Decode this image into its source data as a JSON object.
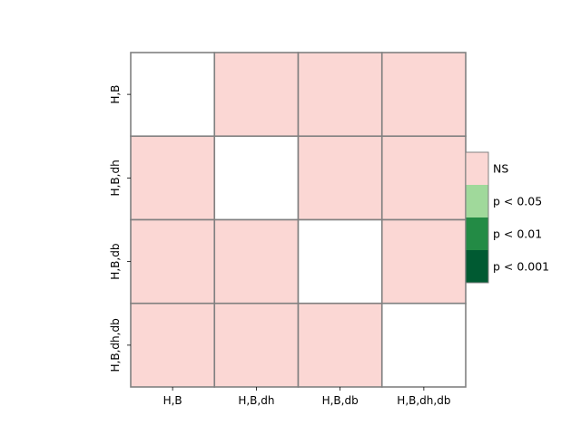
{
  "chart_data": {
    "type": "heatmap",
    "rows": [
      "H,B",
      "H,B,dh",
      "H,B,db",
      "H,B,dh,db"
    ],
    "cols": [
      "H,B",
      "H,B,dh",
      "H,B,db",
      "H,B,dh,db"
    ],
    "matrix": [
      [
        null,
        "NS",
        "NS",
        "NS"
      ],
      [
        "NS",
        null,
        "NS",
        "NS"
      ],
      [
        "NS",
        "NS",
        null,
        "NS"
      ],
      [
        "NS",
        "NS",
        "NS",
        null
      ]
    ],
    "legend": [
      {
        "label": "NS",
        "color": "#fbd7d4"
      },
      {
        "label": "p < 0.05",
        "color": "#a0d99b"
      },
      {
        "label": "p < 0.01",
        "color": "#238b45"
      },
      {
        "label": "p < 0.001",
        "color": "#005a32"
      }
    ],
    "empty_color": "#ffffff",
    "cell_border_color": "#808080",
    "legend_placement": "right"
  }
}
